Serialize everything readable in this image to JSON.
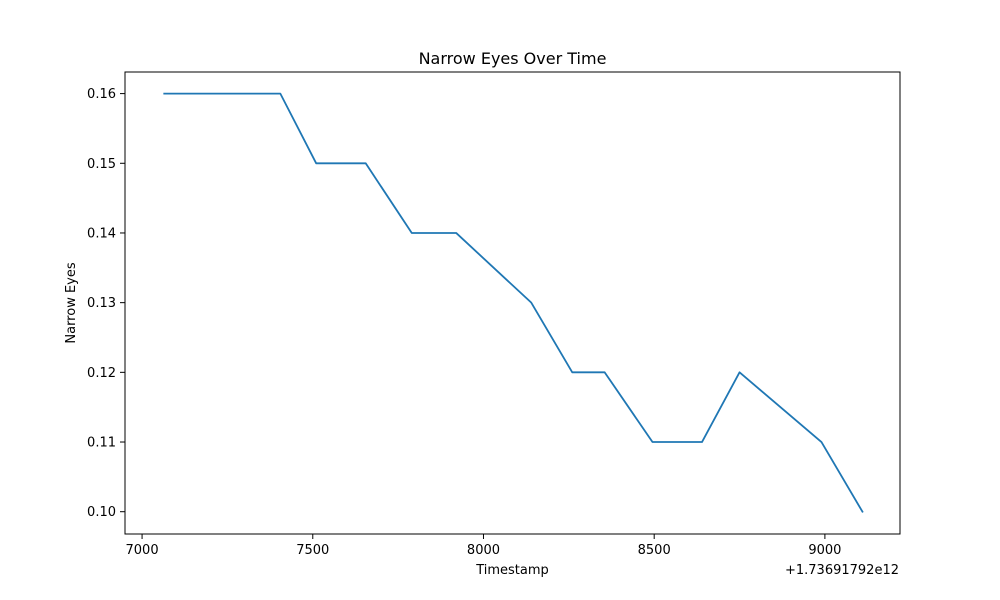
{
  "chart_data": {
    "type": "line",
    "title": "Narrow Eyes Over Time",
    "xlabel": "Timestamp",
    "ylabel": "Narrow Eyes",
    "x_offset_label": "+1.73691792e12",
    "xlim": [
      6950,
      9220
    ],
    "ylim": [
      0.0968,
      0.1631
    ],
    "x_ticks": [
      7000,
      7500,
      8000,
      8500,
      9000
    ],
    "x_tick_labels": [
      "7000",
      "7500",
      "8000",
      "8500",
      "9000"
    ],
    "y_ticks": [
      0.1,
      0.11,
      0.12,
      0.13,
      0.14,
      0.15,
      0.16
    ],
    "y_tick_labels": [
      "0.10",
      "0.11",
      "0.12",
      "0.13",
      "0.14",
      "0.15",
      "0.16"
    ],
    "grid": false,
    "series": [
      {
        "color": "#1f77b4",
        "x": [
          7065,
          7405,
          7510,
          7655,
          7790,
          7920,
          8140,
          8260,
          8355,
          8495,
          8640,
          8750,
          8990,
          9110
        ],
        "y": [
          0.16,
          0.16,
          0.15,
          0.15,
          0.14,
          0.14,
          0.13,
          0.12,
          0.12,
          0.11,
          0.11,
          0.12,
          0.11,
          0.1
        ]
      }
    ]
  }
}
